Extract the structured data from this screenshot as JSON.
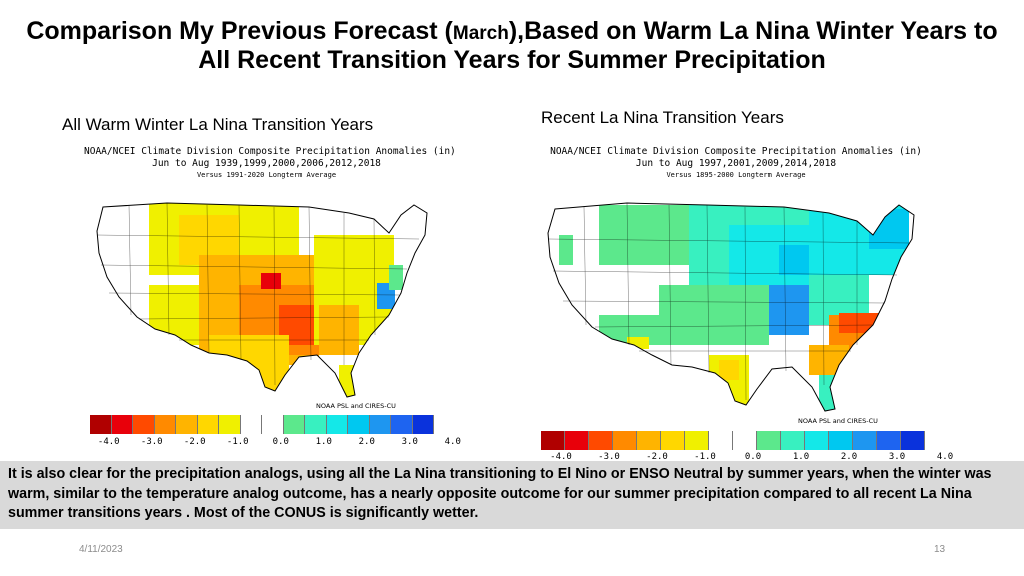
{
  "slide": {
    "title_before": "Comparison  My Previous Forecast (",
    "title_march": "March",
    "title_after": "),Based on Warm La Nina Winter Years to All Recent Transition Years for Summer Precipitation",
    "date": "4/11/2023",
    "page_number": "13",
    "body_text": "It is  also clear for the precipitation analogs, using all the La Nina transitioning to El Nino or ENSO Neutral by summer years, when the winter was warm,  similar to the temperature analog outcome, has a nearly opposite outcome for our summer precipitation compared to all recent La Nina summer transitions years .  Most of the CONUS is significantly wetter."
  },
  "left_panel": {
    "subtitle": "All Warm Winter La Nina Transition Years",
    "map_title": "NOAA/NCEI Climate Division Composite Precipitation Anomalies (in)",
    "map_period": "Jun to Aug  1939,1999,2000,2006,2012,2018",
    "map_baseline": "Versus 1991-2020 Longterm Average",
    "credit": "NOAA PSL and CIRES-CU",
    "ticks": [
      "-4.0",
      "-3.0",
      "-2.0",
      "-1.0",
      "0.0",
      "1.0",
      "2.0",
      "3.0",
      "4.0"
    ]
  },
  "right_panel": {
    "subtitle": "Recent La Nina Transition Years",
    "map_title": "NOAA/NCEI Climate Division Composite Precipitation Anomalies (in)",
    "map_period": "Jun to Aug  1997,2001,2009,2014,2018",
    "map_baseline": "Versus 1895-2000 Longterm Average",
    "credit": "NOAA PSL and CIRES-CU",
    "ticks": [
      "-4.0",
      "-3.0",
      "-2.0",
      "-1.0",
      "0.0",
      "1.0",
      "2.0",
      "3.0",
      "4.0"
    ]
  },
  "colors": {
    "colorbar": [
      "#b00000",
      "#e8000a",
      "#ff4a00",
      "#ff8a00",
      "#ffb400",
      "#ffd700",
      "#f0f000",
      "#ffffff",
      "#ffffff",
      "#5ce88c",
      "#38f0c0",
      "#14e8e8",
      "#00c8f0",
      "#1e96f0",
      "#1e64f0",
      "#0a32dc"
    ],
    "wet_light": "#5ce88c",
    "wet_cyan": "#38f0c0",
    "wet_aqua": "#14e8e8",
    "wet_sky": "#00c8f0",
    "wet_blue": "#1e96f0",
    "dry_yellow": "#f0f000",
    "dry_gold": "#ffd700",
    "dry_orange": "#ffb400",
    "dry_dark_orange": "#ff8a00",
    "dry_red_orange": "#ff4a00",
    "dry_red": "#e8000a"
  }
}
